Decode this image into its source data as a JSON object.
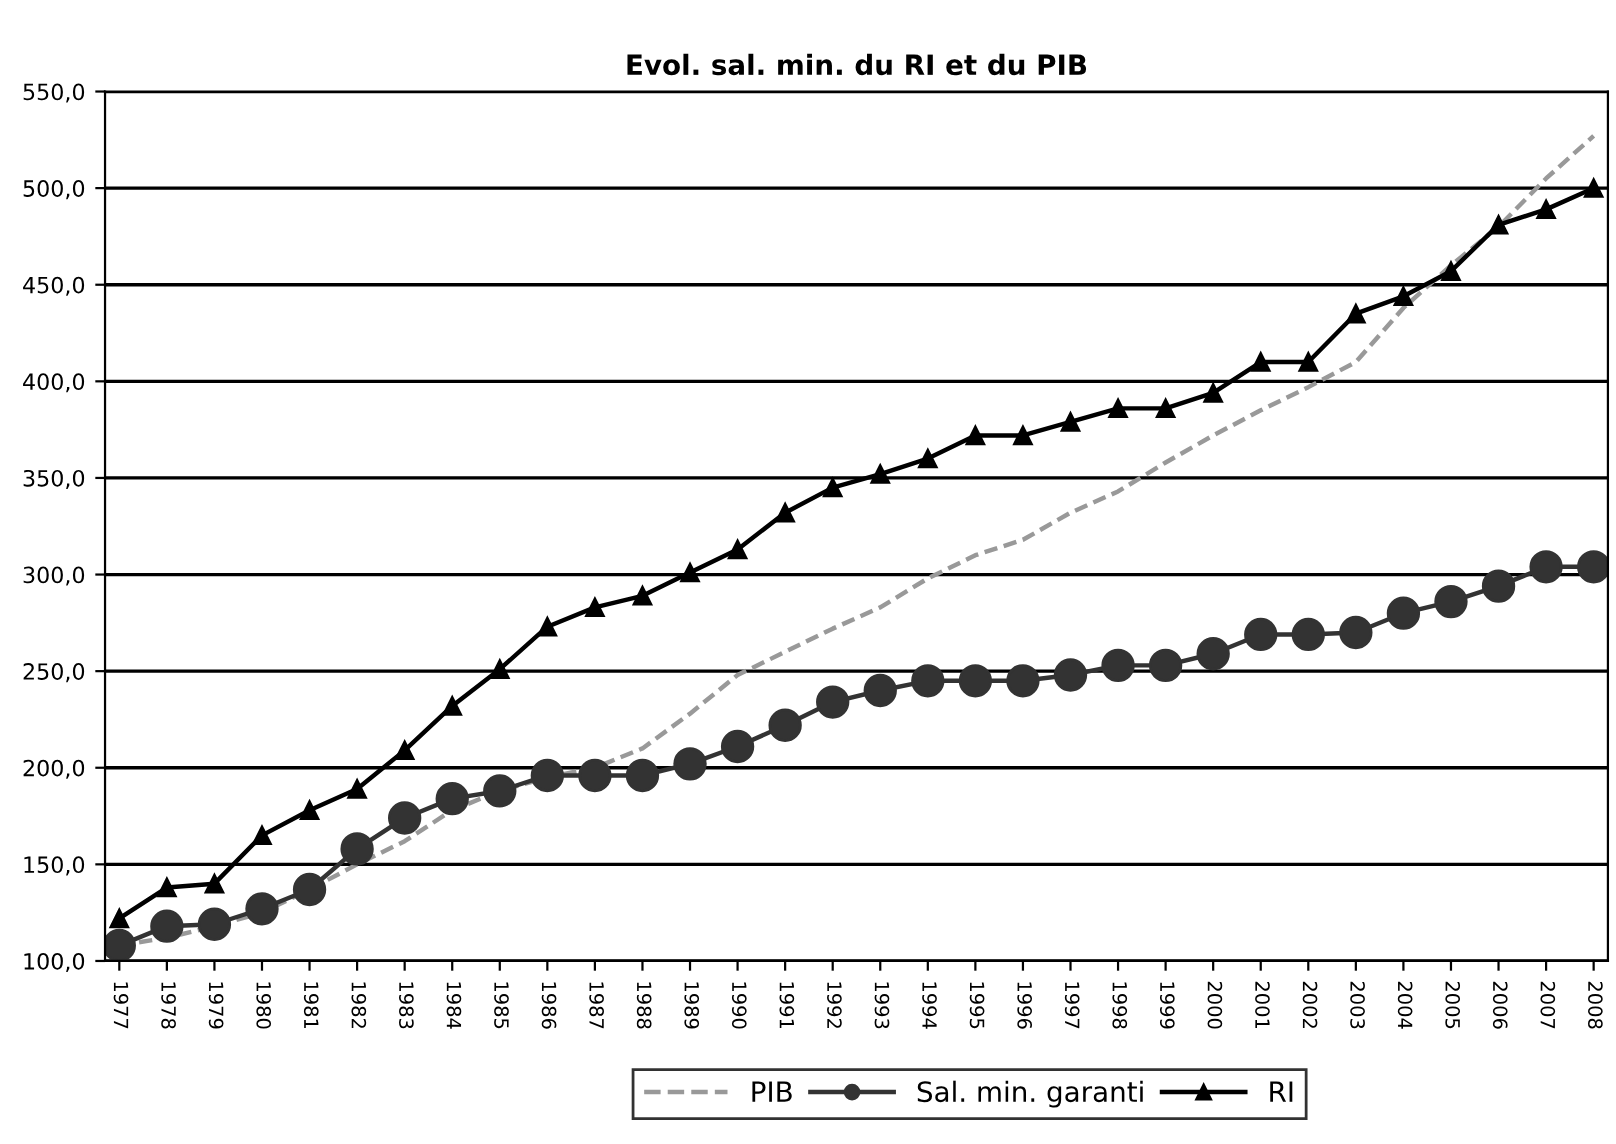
{
  "chart_data": {
    "type": "line",
    "title": "Evol. sal. min. du RI et du PIB",
    "categories": [
      "1977",
      "1978",
      "1979",
      "1980",
      "1981",
      "1982",
      "1983",
      "1984",
      "1985",
      "1986",
      "1987",
      "1988",
      "1989",
      "1990",
      "1991",
      "1992",
      "1993",
      "1994",
      "1995",
      "1996",
      "1997",
      "1998",
      "1999",
      "2000",
      "2001",
      "2002",
      "2003",
      "2004",
      "2005",
      "2006",
      "2007",
      "2008"
    ],
    "series": [
      {
        "name": "PIB",
        "color": "#999999",
        "line_style": "dashed",
        "marker": "none",
        "values": [
          108,
          112,
          118,
          125,
          137,
          150,
          162,
          178,
          188,
          195,
          200,
          210,
          228,
          248,
          260,
          272,
          283,
          298,
          310,
          318,
          332,
          343,
          358,
          372,
          385,
          397,
          410,
          438,
          460,
          480,
          505,
          527
        ]
      },
      {
        "name": "Sal. min. garanti",
        "color": "#333333",
        "line_style": "solid",
        "marker": "circle",
        "values": [
          108,
          118,
          119,
          127,
          137,
          158,
          174,
          184,
          188,
          196,
          196,
          196,
          202,
          211,
          222,
          234,
          240,
          245,
          245,
          245,
          248,
          253,
          253,
          259,
          269,
          269,
          270,
          280,
          286,
          294,
          304,
          304
        ]
      },
      {
        "name": "RI",
        "color": "#000000",
        "line_style": "solid",
        "marker": "triangle",
        "values": [
          122,
          138,
          140,
          165,
          178,
          189,
          209,
          232,
          251,
          273,
          283,
          289,
          301,
          313,
          332,
          345,
          352,
          360,
          372,
          372,
          379,
          386,
          386,
          394,
          410,
          410,
          435,
          444,
          457,
          481,
          489,
          500
        ]
      }
    ],
    "ylim": [
      100,
      550
    ],
    "yticks": [
      {
        "value": 100,
        "label": "100,0"
      },
      {
        "value": 150,
        "label": "150,0"
      },
      {
        "value": 200,
        "label": "200,0"
      },
      {
        "value": 250,
        "label": "250,0"
      },
      {
        "value": 300,
        "label": "300,0"
      },
      {
        "value": 350,
        "label": "350,0"
      },
      {
        "value": 400,
        "label": "400,0"
      },
      {
        "value": 450,
        "label": "450,0"
      },
      {
        "value": 500,
        "label": "500,0"
      },
      {
        "value": 550,
        "label": "550,0"
      }
    ],
    "grid": "y",
    "legend": "bottom"
  }
}
